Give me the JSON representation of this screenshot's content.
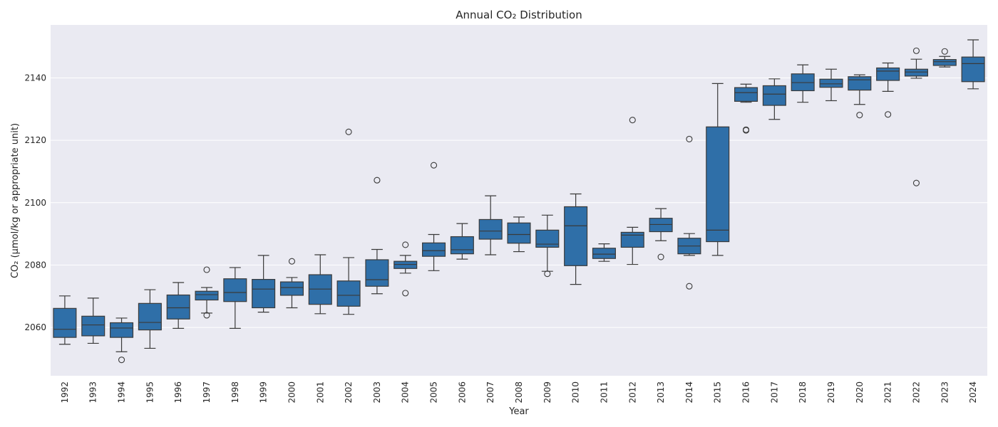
{
  "chart_data": {
    "type": "box",
    "title": "Annual CO₂ Distribution",
    "xlabel": "Year",
    "ylabel": "CO₂ (μmol/kg or appropriate unit)",
    "ylim": [
      2044.5,
      2157
    ],
    "yticks": [
      2060,
      2080,
      2100,
      2120,
      2140
    ],
    "grid": true,
    "colors": {
      "plot_bg": "#eaeaf2",
      "box_fill": "#2f6fa8",
      "line": "#3a3a3a",
      "grid": "#ffffff"
    },
    "categories": [
      "1992",
      "1993",
      "1994",
      "1995",
      "1996",
      "1997",
      "1998",
      "1999",
      "2000",
      "2001",
      "2002",
      "2003",
      "2004",
      "2005",
      "2006",
      "2007",
      "2008",
      "2009",
      "2010",
      "2011",
      "2012",
      "2013",
      "2014",
      "2015",
      "2016",
      "2017",
      "2018",
      "2019",
      "2020",
      "2021",
      "2022",
      "2023",
      "2024"
    ],
    "boxes": [
      {
        "whisker_low": 2054.6,
        "q1": 2056.8,
        "median": 2059.4,
        "q3": 2066.1,
        "whisker_high": 2070.1,
        "outliers": []
      },
      {
        "whisker_low": 2054.9,
        "q1": 2057.3,
        "median": 2060.8,
        "q3": 2063.6,
        "whisker_high": 2069.4,
        "outliers": []
      },
      {
        "whisker_low": 2052.2,
        "q1": 2056.8,
        "median": 2059.8,
        "q3": 2061.5,
        "whisker_high": 2063.0,
        "outliers": [
          2049.6
        ]
      },
      {
        "whisker_low": 2053.3,
        "q1": 2059.2,
        "median": 2061.6,
        "q3": 2067.7,
        "whisker_high": 2072.1,
        "outliers": []
      },
      {
        "whisker_low": 2059.7,
        "q1": 2062.7,
        "median": 2066.3,
        "q3": 2070.4,
        "whisker_high": 2074.4,
        "outliers": []
      },
      {
        "whisker_low": 2064.6,
        "q1": 2068.8,
        "median": 2070.5,
        "q3": 2071.6,
        "whisker_high": 2072.8,
        "outliers": [
          2078.5,
          2063.9
        ]
      },
      {
        "whisker_low": 2059.7,
        "q1": 2068.3,
        "median": 2071.2,
        "q3": 2075.6,
        "whisker_high": 2079.2,
        "outliers": []
      },
      {
        "whisker_low": 2064.9,
        "q1": 2066.3,
        "median": 2072.3,
        "q3": 2075.4,
        "whisker_high": 2083.1,
        "outliers": []
      },
      {
        "whisker_low": 2066.3,
        "q1": 2070.3,
        "median": 2072.8,
        "q3": 2074.6,
        "whisker_high": 2076.0,
        "outliers": [
          2081.2
        ]
      },
      {
        "whisker_low": 2064.4,
        "q1": 2067.4,
        "median": 2072.3,
        "q3": 2076.9,
        "whisker_high": 2083.3,
        "outliers": []
      },
      {
        "whisker_low": 2064.2,
        "q1": 2066.8,
        "median": 2070.3,
        "q3": 2074.9,
        "whisker_high": 2082.4,
        "outliers": [
          2122.7
        ]
      },
      {
        "whisker_low": 2070.8,
        "q1": 2073.2,
        "median": 2075.3,
        "q3": 2081.7,
        "whisker_high": 2085.0,
        "outliers": [
          2107.2
        ]
      },
      {
        "whisker_low": 2077.4,
        "q1": 2078.9,
        "median": 2080.2,
        "q3": 2081.2,
        "whisker_high": 2083.1,
        "outliers": [
          2086.5,
          2071.0
        ]
      },
      {
        "whisker_low": 2078.2,
        "q1": 2082.8,
        "median": 2084.6,
        "q3": 2087.1,
        "whisker_high": 2089.8,
        "outliers": [
          2112.0
        ]
      },
      {
        "whisker_low": 2081.9,
        "q1": 2083.6,
        "median": 2084.9,
        "q3": 2089.1,
        "whisker_high": 2093.3,
        "outliers": []
      },
      {
        "whisker_low": 2083.3,
        "q1": 2088.3,
        "median": 2090.9,
        "q3": 2094.6,
        "whisker_high": 2102.2,
        "outliers": []
      },
      {
        "whisker_low": 2084.3,
        "q1": 2087.0,
        "median": 2089.8,
        "q3": 2093.5,
        "whisker_high": 2095.4,
        "outliers": []
      },
      {
        "whisker_low": 2078.0,
        "q1": 2085.7,
        "median": 2086.7,
        "q3": 2091.2,
        "whisker_high": 2096.0,
        "outliers": [
          2077.2
        ]
      },
      {
        "whisker_low": 2073.8,
        "q1": 2079.8,
        "median": 2092.6,
        "q3": 2098.7,
        "whisker_high": 2102.8,
        "outliers": []
      },
      {
        "whisker_low": 2081.2,
        "q1": 2082.1,
        "median": 2083.5,
        "q3": 2085.4,
        "whisker_high": 2086.8,
        "outliers": []
      },
      {
        "whisker_low": 2080.2,
        "q1": 2085.7,
        "median": 2089.6,
        "q3": 2090.5,
        "whisker_high": 2092.1,
        "outliers": [
          2126.5
        ]
      },
      {
        "whisker_low": 2087.8,
        "q1": 2090.7,
        "median": 2093.0,
        "q3": 2095.0,
        "whisker_high": 2098.1,
        "outliers": [
          2082.6
        ]
      },
      {
        "whisker_low": 2083.1,
        "q1": 2083.6,
        "median": 2086.1,
        "q3": 2088.6,
        "whisker_high": 2090.1,
        "outliers": [
          2120.4,
          2073.2
        ]
      },
      {
        "whisker_low": 2083.1,
        "q1": 2087.5,
        "median": 2091.2,
        "q3": 2124.3,
        "whisker_high": 2138.2,
        "outliers": []
      },
      {
        "whisker_low": 2132.2,
        "q1": 2132.5,
        "median": 2135.3,
        "q3": 2136.9,
        "whisker_high": 2138.0,
        "outliers": [
          2123.4,
          2123.2
        ]
      },
      {
        "whisker_low": 2126.7,
        "q1": 2131.2,
        "median": 2134.8,
        "q3": 2137.5,
        "whisker_high": 2139.7,
        "outliers": []
      },
      {
        "whisker_low": 2132.2,
        "q1": 2135.9,
        "median": 2138.5,
        "q3": 2141.3,
        "whisker_high": 2144.2,
        "outliers": []
      },
      {
        "whisker_low": 2132.7,
        "q1": 2137.0,
        "median": 2138.1,
        "q3": 2139.6,
        "whisker_high": 2142.8,
        "outliers": []
      },
      {
        "whisker_low": 2131.5,
        "q1": 2136.1,
        "median": 2139.4,
        "q3": 2140.4,
        "whisker_high": 2141.0,
        "outliers": [
          2128.1
        ]
      },
      {
        "whisker_low": 2135.7,
        "q1": 2139.2,
        "median": 2142.2,
        "q3": 2143.2,
        "whisker_high": 2144.8,
        "outliers": [
          2128.3
        ]
      },
      {
        "whisker_low": 2139.9,
        "q1": 2140.6,
        "median": 2141.9,
        "q3": 2142.8,
        "whisker_high": 2146.0,
        "outliers": [
          2148.7,
          2106.3
        ]
      },
      {
        "whisker_low": 2143.5,
        "q1": 2144.0,
        "median": 2145.2,
        "q3": 2145.9,
        "whisker_high": 2146.9,
        "outliers": [
          2148.5
        ]
      },
      {
        "whisker_low": 2136.5,
        "q1": 2138.8,
        "median": 2144.6,
        "q3": 2146.7,
        "whisker_high": 2152.2,
        "outliers": []
      }
    ]
  }
}
